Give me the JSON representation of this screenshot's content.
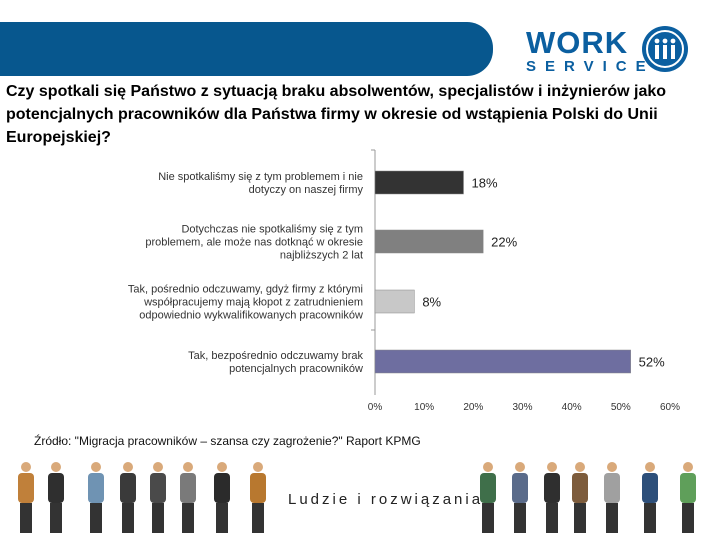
{
  "header": {
    "logo_word": "WORK",
    "logo_sub": "SERVICE",
    "banner_color": "#07578e",
    "logo_color": "#0b5fa0"
  },
  "question": "Czy spotkali się Państwo z sytuacją braku absolwentów, specjalistów i inżynierów jako potencjalnych pracowników dla Państwa firmy w okresie od wstąpienia Polski do Unii Europejskiej?",
  "chart_data": {
    "type": "bar",
    "orientation": "horizontal",
    "categories": [
      [
        "Nie spotkaliśmy się z tym problemem i nie",
        "dotyczy on naszej firmy"
      ],
      [
        "Dotychczas nie spotkaliśmy się z tym",
        "problemem, ale może nas dotknąć w okresie",
        "najbliższych 2 lat"
      ],
      [
        "Tak, pośrednio odczuwamy, gdyż firmy z którymi",
        "współpracujemy mają kłopot z zatrudnieniem",
        "odpowiednio wykwalifikowanych pracowników"
      ],
      [
        "Tak, bezpośrednio odczuwamy brak",
        "potencjalnych pracowników"
      ]
    ],
    "values": [
      18,
      22,
      8,
      52
    ],
    "value_labels": [
      "18%",
      "22%",
      "8%",
      "52%"
    ],
    "bar_colors": [
      "#333333",
      "#808080",
      "#c8c8c8",
      "#6e6ea0"
    ],
    "x_ticks": [
      "0%",
      "10%",
      "20%",
      "30%",
      "40%",
      "50%",
      "60%"
    ],
    "xlim": [
      0,
      60
    ],
    "grid": false,
    "legend": "none"
  },
  "source": "Źródło: \"Migracja pracowników – szansa czy zagrożenie?\"  Raport KPMG",
  "tagline": "Ludzie i rozwiązania",
  "people_icons": [
    "person-icon"
  ]
}
